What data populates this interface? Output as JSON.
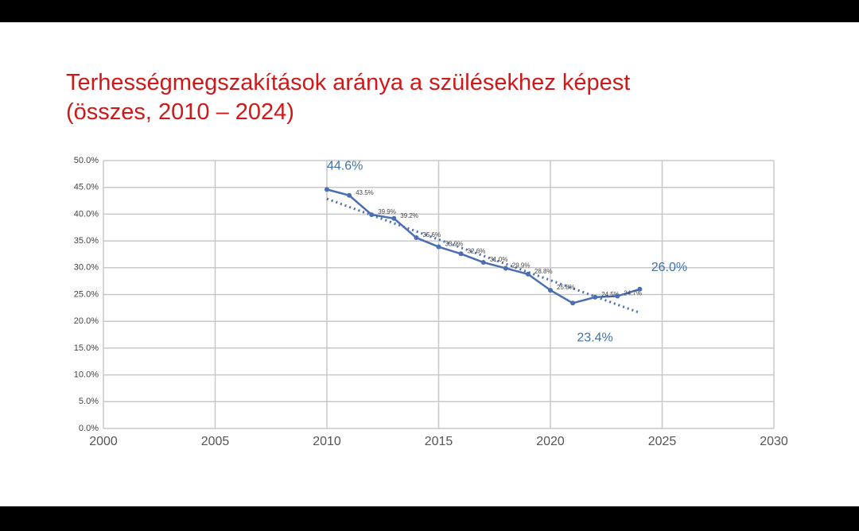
{
  "chart_data": {
    "type": "line",
    "title": "Terhességmegszakítások aránya a szülésekhez képest",
    "subtitle": "(összes, 2010 – 2024)",
    "x": [
      2010,
      2011,
      2012,
      2013,
      2014,
      2015,
      2016,
      2017,
      2018,
      2019,
      2020,
      2021,
      2022,
      2023,
      2024
    ],
    "series": [
      {
        "color": "#4a6db3",
        "values": [
          44.6,
          43.5,
          39.9,
          39.2,
          35.6,
          33.9,
          32.6,
          31.0,
          29.9,
          28.8,
          25.8,
          23.4,
          24.5,
          24.7,
          26.0
        ],
        "value_labels": [
          "44.6%",
          "43.5%",
          "39.9%",
          "39.2%",
          "35.6%",
          "33.9%",
          "32.6%",
          "31.0%",
          "29.9%",
          "28.8%",
          "25.8%",
          "23.4%",
          "24.5%",
          "24.7%",
          "26.0%"
        ]
      }
    ],
    "trendline": true,
    "xlim": [
      2000,
      2030
    ],
    "xticks": [
      2000,
      2005,
      2010,
      2015,
      2020,
      2025,
      2030
    ],
    "ylim": [
      0,
      50
    ],
    "yticks": [
      {
        "value": 0,
        "label": "0.0%"
      },
      {
        "value": 5,
        "label": "5.0%"
      },
      {
        "value": 10,
        "label": "10.0%"
      },
      {
        "value": 15,
        "label": "15.0%"
      },
      {
        "value": 20,
        "label": "20.0%"
      },
      {
        "value": 25,
        "label": "25.0%"
      },
      {
        "value": 30,
        "label": "30.0%"
      },
      {
        "value": 35,
        "label": "35.0%"
      },
      {
        "value": 40,
        "label": "40.0%"
      },
      {
        "value": 45,
        "label": "45.0%"
      },
      {
        "value": 50,
        "label": "50.0%"
      }
    ],
    "grid": true
  }
}
